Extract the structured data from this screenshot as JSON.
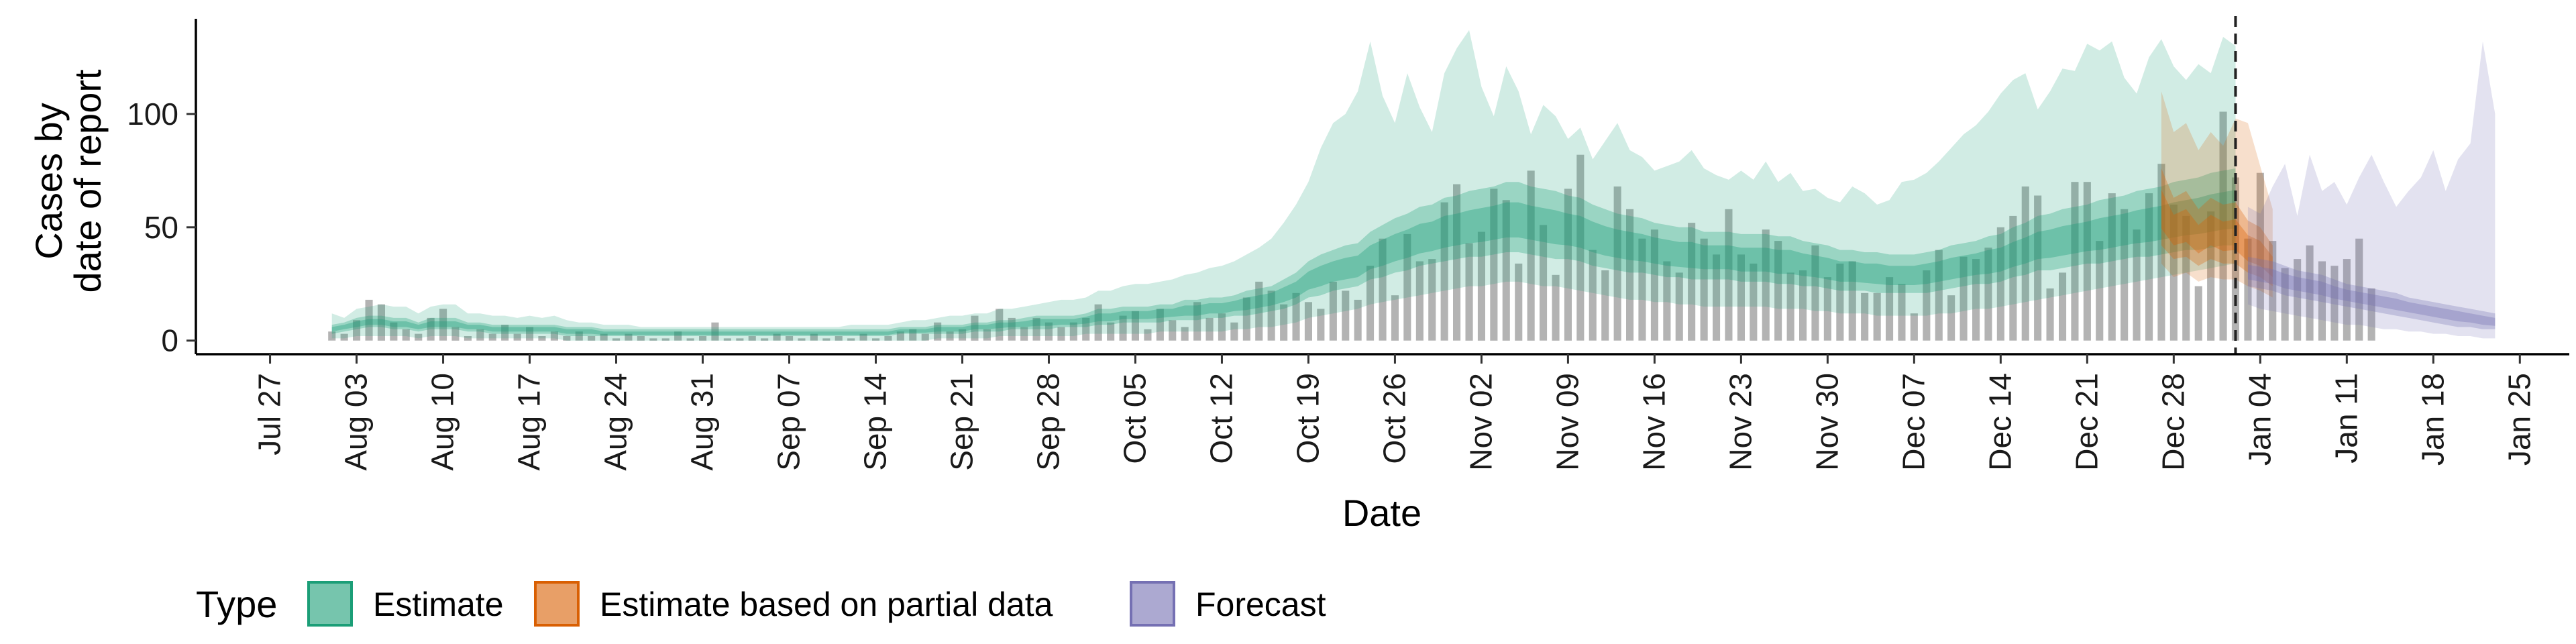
{
  "chart_data": {
    "type": "area",
    "xlabel": "Date",
    "ylabel_lines": [
      "Cases by",
      "date of report"
    ],
    "ylim": [
      -6,
      142
    ],
    "y_ticks": [
      0,
      50,
      100
    ],
    "x_range": [
      "2020-07-21",
      "2021-01-29"
    ],
    "x_ticks": [
      {
        "date": "2020-07-27",
        "label": "Jul 27"
      },
      {
        "date": "2020-08-03",
        "label": "Aug 03"
      },
      {
        "date": "2020-08-10",
        "label": "Aug 10"
      },
      {
        "date": "2020-08-17",
        "label": "Aug 17"
      },
      {
        "date": "2020-08-24",
        "label": "Aug 24"
      },
      {
        "date": "2020-08-31",
        "label": "Aug 31"
      },
      {
        "date": "2020-09-07",
        "label": "Sep 07"
      },
      {
        "date": "2020-09-14",
        "label": "Sep 14"
      },
      {
        "date": "2020-09-21",
        "label": "Sep 21"
      },
      {
        "date": "2020-09-28",
        "label": "Sep 28"
      },
      {
        "date": "2020-10-05",
        "label": "Oct 05"
      },
      {
        "date": "2020-10-12",
        "label": "Oct 12"
      },
      {
        "date": "2020-10-19",
        "label": "Oct 19"
      },
      {
        "date": "2020-10-26",
        "label": "Oct 26"
      },
      {
        "date": "2020-11-02",
        "label": "Nov 02"
      },
      {
        "date": "2020-11-09",
        "label": "Nov 09"
      },
      {
        "date": "2020-11-16",
        "label": "Nov 16"
      },
      {
        "date": "2020-11-23",
        "label": "Nov 23"
      },
      {
        "date": "2020-11-30",
        "label": "Nov 30"
      },
      {
        "date": "2020-12-07",
        "label": "Dec 07"
      },
      {
        "date": "2020-12-14",
        "label": "Dec 14"
      },
      {
        "date": "2020-12-21",
        "label": "Dec 21"
      },
      {
        "date": "2020-12-28",
        "label": "Dec 28"
      },
      {
        "date": "2021-01-04",
        "label": "Jan 04"
      },
      {
        "date": "2021-01-11",
        "label": "Jan 11"
      },
      {
        "date": "2021-01-18",
        "label": "Jan 18"
      },
      {
        "date": "2021-01-25",
        "label": "Jan 25"
      }
    ],
    "forecast_start": "2021-01-02",
    "legend": {
      "title": "Type",
      "position": "bottom",
      "items": [
        {
          "label": "Estimate",
          "color": "#1b9e77"
        },
        {
          "label": "Estimate based on partial data",
          "color": "#d95f02"
        },
        {
          "label": "Forecast",
          "color": "#7570b3"
        }
      ]
    },
    "bar_color": "#a6a6a6",
    "bars": {
      "start": "2020-08-01",
      "values": [
        4,
        3,
        9,
        18,
        16,
        8,
        5,
        3,
        10,
        14,
        6,
        2,
        5,
        3,
        7,
        3,
        6,
        2,
        4,
        2,
        4,
        2,
        3,
        1,
        3,
        2,
        1,
        1,
        4,
        1,
        2,
        8,
        1,
        1,
        2,
        1,
        3,
        2,
        1,
        3,
        1,
        2,
        1,
        3,
        1,
        2,
        4,
        5,
        3,
        8,
        4,
        5,
        11,
        5,
        14,
        10,
        6,
        10,
        8,
        6,
        8,
        10,
        16,
        8,
        11,
        13,
        5,
        14,
        9,
        6,
        17,
        10,
        12,
        8,
        19,
        26,
        22,
        16,
        21,
        17,
        14,
        26,
        22,
        18,
        33,
        45,
        20,
        47,
        35,
        36,
        61,
        69,
        43,
        48,
        67,
        62,
        34,
        75,
        51,
        29,
        67,
        82,
        40,
        31,
        68,
        58,
        45,
        49,
        35,
        30,
        52,
        45,
        38,
        58,
        38,
        34,
        49,
        44,
        30,
        31,
        42,
        28,
        34,
        35,
        21,
        21,
        28,
        25,
        12,
        31,
        40,
        20,
        37,
        36,
        41,
        50,
        55,
        68,
        64,
        23,
        30,
        70,
        70,
        44,
        65,
        58,
        49,
        65,
        78,
        60,
        55,
        24,
        57,
        101,
        72,
        45,
        74,
        44,
        32,
        36,
        42,
        35,
        33,
        36,
        45,
        23
      ]
    },
    "series": [
      {
        "name": "Estimate",
        "color": "#1b9e77",
        "start": "2020-08-01",
        "median": [
          5,
          6,
          7,
          8,
          8,
          7,
          7,
          6,
          7,
          7,
          7,
          6,
          6,
          5,
          5,
          5,
          5,
          5,
          5,
          4,
          4,
          4,
          3,
          3,
          3,
          3,
          3,
          3,
          3,
          3,
          3,
          3,
          3,
          3,
          3,
          3,
          3,
          3,
          3,
          3,
          3,
          3,
          3,
          3,
          3,
          3,
          4,
          4,
          4,
          5,
          5,
          5,
          6,
          6,
          7,
          7,
          7,
          8,
          8,
          8,
          8,
          9,
          10,
          10,
          11,
          11,
          11,
          12,
          12,
          13,
          13,
          14,
          14,
          15,
          16,
          17,
          18,
          20,
          22,
          26,
          28,
          30,
          31,
          32,
          36,
          38,
          40,
          42,
          44,
          45,
          47,
          48,
          49,
          50,
          51,
          52,
          52,
          51,
          50,
          49,
          48,
          47,
          45,
          43,
          42,
          41,
          40,
          39,
          38,
          37,
          37,
          36,
          36,
          36,
          35,
          35,
          35,
          34,
          34,
          33,
          32,
          31,
          30,
          30,
          29,
          29,
          28,
          28,
          28,
          29,
          30,
          31,
          32,
          33,
          34,
          35,
          37,
          39,
          41,
          42,
          43,
          44,
          45,
          46,
          47,
          48,
          49,
          50,
          51,
          52,
          53,
          54,
          55,
          56,
          57
        ],
        "q25": [
          3,
          4,
          5,
          6,
          6,
          5,
          5,
          4,
          5,
          5,
          5,
          4,
          4,
          3,
          3,
          3,
          3,
          3,
          3,
          2,
          2,
          2,
          2,
          2,
          2,
          2,
          2,
          2,
          2,
          2,
          2,
          2,
          2,
          2,
          2,
          2,
          2,
          2,
          2,
          2,
          2,
          2,
          2,
          2,
          2,
          2,
          3,
          3,
          3,
          3,
          3,
          3,
          4,
          4,
          4,
          5,
          5,
          5,
          5,
          6,
          6,
          6,
          7,
          7,
          8,
          8,
          8,
          8,
          9,
          9,
          9,
          10,
          10,
          11,
          11,
          12,
          13,
          14,
          16,
          19,
          20,
          22,
          23,
          24,
          27,
          28,
          30,
          31,
          33,
          34,
          35,
          36,
          37,
          37,
          38,
          39,
          39,
          38,
          37,
          36,
          36,
          35,
          33,
          32,
          31,
          30,
          30,
          29,
          28,
          28,
          27,
          27,
          27,
          27,
          26,
          26,
          26,
          25,
          25,
          24,
          24,
          23,
          22,
          22,
          22,
          21,
          21,
          21,
          21,
          21,
          22,
          23,
          24,
          25,
          25,
          26,
          28,
          29,
          31,
          31,
          32,
          33,
          34,
          34,
          35,
          36,
          37,
          37,
          38,
          39,
          40,
          40,
          41,
          42,
          42
        ],
        "q75": [
          7,
          8,
          10,
          11,
          11,
          10,
          10,
          8,
          10,
          10,
          10,
          8,
          8,
          7,
          7,
          7,
          7,
          7,
          7,
          6,
          6,
          6,
          5,
          5,
          5,
          5,
          5,
          5,
          5,
          5,
          5,
          5,
          5,
          5,
          5,
          5,
          5,
          5,
          5,
          5,
          5,
          5,
          5,
          5,
          5,
          5,
          6,
          6,
          6,
          7,
          7,
          7,
          8,
          8,
          9,
          9,
          10,
          11,
          11,
          11,
          11,
          12,
          14,
          14,
          15,
          15,
          15,
          16,
          16,
          18,
          18,
          19,
          19,
          20,
          22,
          23,
          24,
          27,
          30,
          35,
          38,
          40,
          42,
          43,
          48,
          51,
          54,
          56,
          59,
          60,
          63,
          64,
          66,
          67,
          68,
          70,
          70,
          68,
          67,
          66,
          64,
          63,
          60,
          58,
          56,
          55,
          54,
          52,
          51,
          50,
          50,
          48,
          48,
          48,
          47,
          47,
          47,
          46,
          46,
          44,
          43,
          42,
          40,
          40,
          39,
          39,
          38,
          38,
          38,
          39,
          40,
          42,
          43,
          44,
          46,
          47,
          50,
          52,
          55,
          56,
          58,
          59,
          60,
          62,
          63,
          64,
          66,
          67,
          68,
          70,
          71,
          72,
          74,
          75,
          76
        ],
        "lower": [
          1,
          1,
          2,
          2,
          2,
          2,
          2,
          1,
          2,
          2,
          2,
          1,
          1,
          1,
          1,
          1,
          1,
          1,
          1,
          0,
          0,
          0,
          0,
          0,
          0,
          0,
          0,
          0,
          0,
          0,
          0,
          0,
          0,
          0,
          0,
          0,
          0,
          0,
          0,
          0,
          0,
          0,
          0,
          0,
          0,
          0,
          0,
          0,
          0,
          1,
          1,
          1,
          1,
          1,
          2,
          2,
          2,
          2,
          2,
          2,
          2,
          3,
          3,
          3,
          3,
          3,
          3,
          4,
          4,
          4,
          4,
          4,
          4,
          5,
          5,
          6,
          6,
          7,
          8,
          10,
          11,
          12,
          13,
          14,
          16,
          17,
          18,
          19,
          20,
          21,
          22,
          23,
          24,
          24,
          25,
          26,
          26,
          25,
          24,
          24,
          23,
          22,
          21,
          20,
          19,
          18,
          18,
          17,
          17,
          16,
          16,
          15,
          15,
          15,
          15,
          15,
          15,
          14,
          14,
          14,
          13,
          13,
          12,
          12,
          12,
          11,
          11,
          11,
          11,
          11,
          12,
          12,
          13,
          14,
          14,
          15,
          16,
          17,
          18,
          19,
          20,
          21,
          22,
          23,
          24,
          25,
          26,
          27,
          28,
          29,
          30,
          31,
          32,
          33,
          34
        ],
        "upper": [
          12,
          10,
          14,
          15,
          16,
          15,
          15,
          12,
          15,
          16,
          16,
          12,
          12,
          11,
          11,
          10,
          11,
          10,
          11,
          9,
          8,
          8,
          7,
          7,
          7,
          6,
          6,
          6,
          6,
          6,
          6,
          6,
          6,
          6,
          6,
          6,
          6,
          6,
          6,
          6,
          6,
          6,
          7,
          7,
          7,
          7,
          8,
          9,
          9,
          10,
          11,
          11,
          12,
          12,
          14,
          14,
          15,
          16,
          17,
          18,
          18,
          19,
          22,
          22,
          24,
          25,
          25,
          26,
          27,
          29,
          30,
          32,
          33,
          35,
          38,
          41,
          45,
          52,
          60,
          70,
          85,
          96,
          100,
          110,
          132,
          108,
          96,
          118,
          103,
          92,
          118,
          129,
          137,
          112,
          99,
          121,
          110,
          91,
          104,
          99,
          89,
          94,
          80,
          88,
          96,
          84,
          81,
          75,
          77,
          79,
          84,
          76,
          73,
          71,
          75,
          71,
          79,
          70,
          74,
          66,
          67,
          63,
          61,
          68,
          65,
          60,
          62,
          70,
          71,
          74,
          79,
          85,
          91,
          95,
          101,
          109,
          115,
          118,
          102,
          110,
          120,
          119,
          131,
          128,
          132,
          116,
          109,
          125,
          133,
          121,
          115,
          122,
          118,
          134,
          130
        ]
      },
      {
        "name": "Estimate based on partial data",
        "color": "#d95f02",
        "start": "2020-12-27",
        "median": [
          57,
          48,
          50,
          44,
          48,
          45,
          46,
          40,
          38,
          32
        ],
        "q25": [
          42,
          36,
          37,
          33,
          36,
          34,
          34,
          30,
          28,
          24
        ],
        "q75": [
          76,
          63,
          66,
          58,
          63,
          60,
          61,
          53,
          50,
          42
        ],
        "lower": [
          34,
          28,
          30,
          26,
          28,
          27,
          27,
          24,
          22,
          19
        ],
        "upper": [
          110,
          92,
          96,
          84,
          92,
          86,
          98,
          96,
          77,
          58
        ]
      },
      {
        "name": "Forecast",
        "color": "#7570b3",
        "start": "2021-01-03",
        "median": [
          30,
          29,
          28,
          26,
          25,
          24,
          23,
          21,
          20,
          19,
          18,
          17,
          16,
          15,
          14,
          13,
          12,
          11,
          10,
          9,
          8
        ],
        "q25": [
          24,
          23,
          22,
          20,
          19,
          18,
          17,
          16,
          15,
          14,
          13,
          12,
          11,
          10,
          9,
          8,
          7,
          6,
          6,
          5,
          5
        ],
        "q75": [
          37,
          36,
          35,
          33,
          31,
          30,
          29,
          27,
          25,
          24,
          23,
          22,
          21,
          19,
          18,
          17,
          16,
          15,
          14,
          13,
          12
        ],
        "lower": [
          16,
          14,
          13,
          12,
          11,
          10,
          9,
          8,
          7,
          7,
          6,
          5,
          5,
          4,
          4,
          3,
          3,
          2,
          2,
          1,
          1
        ],
        "upper": [
          59,
          56,
          68,
          78,
          55,
          82,
          66,
          70,
          60,
          72,
          82,
          70,
          59,
          66,
          72,
          84,
          66,
          80,
          87,
          132,
          100
        ]
      }
    ]
  }
}
